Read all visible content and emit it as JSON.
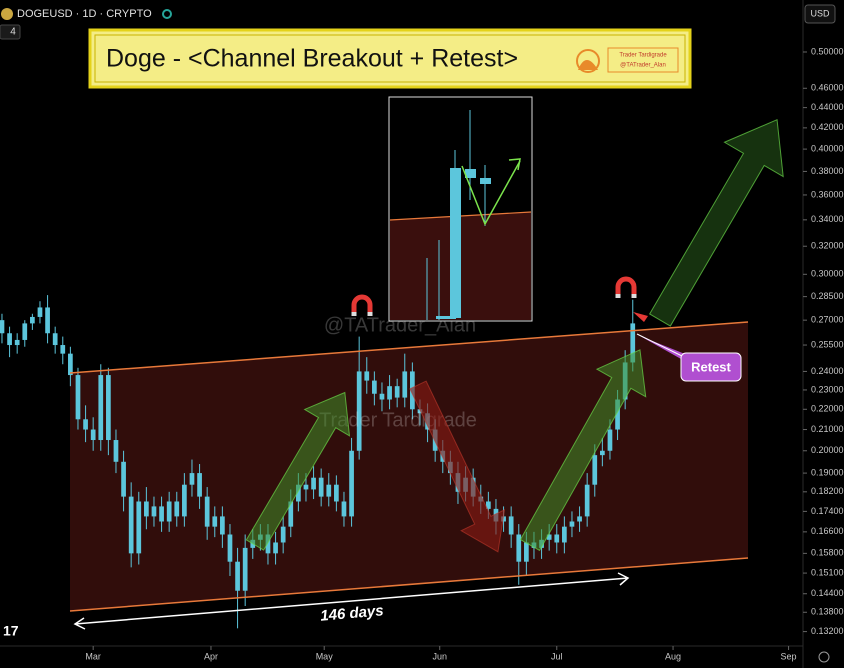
{
  "header": {
    "symbol": "DOGEUSD · 1D · CRYPTO",
    "badge": "4",
    "currency": "USD"
  },
  "annotations": {
    "headline": "Doge - <Channel Breakout + Retest>",
    "logo_name": "Trader Tardigrade",
    "logo_handle": "@TATrader_Alan",
    "watermark_handle": "@TATrader_Alan",
    "watermark_name": "Trader Tardigrade",
    "duration": "146 days",
    "retest": "Retest"
  },
  "chart_data": {
    "type": "candlestick",
    "color": "#5cc6dc",
    "log_scale": true,
    "xlim": [
      -0.26,
      105.4
    ],
    "xticks": [
      {
        "value": 12,
        "label": "Mar"
      },
      {
        "value": 27.5,
        "label": "Apr"
      },
      {
        "value": 42.4,
        "label": "May"
      },
      {
        "value": 57.6,
        "label": "Jun"
      },
      {
        "value": 73,
        "label": "Jul"
      },
      {
        "value": 88.3,
        "label": "Aug"
      },
      {
        "value": 103.5,
        "label": "Sep"
      }
    ],
    "ylim": [
      0.128,
      0.557
    ],
    "yticks": [
      {
        "value": 0.5,
        "label": "0.50000"
      },
      {
        "value": 0.46,
        "label": "0.46000"
      },
      {
        "value": 0.44,
        "label": "0.44000"
      },
      {
        "value": 0.42,
        "label": "0.42000"
      },
      {
        "value": 0.4,
        "label": "0.40000"
      },
      {
        "value": 0.38,
        "label": "0.38000"
      },
      {
        "value": 0.36,
        "label": "0.36000"
      },
      {
        "value": 0.34,
        "label": "0.34000"
      },
      {
        "value": 0.32,
        "label": "0.32000"
      },
      {
        "value": 0.3,
        "label": "0.30000"
      },
      {
        "value": 0.285,
        "label": "0.28500"
      },
      {
        "value": 0.27,
        "label": "0.27000"
      },
      {
        "value": 0.255,
        "label": "0.25500"
      },
      {
        "value": 0.24,
        "label": "0.24000"
      },
      {
        "value": 0.23,
        "label": "0.23000"
      },
      {
        "value": 0.22,
        "label": "0.22000"
      },
      {
        "value": 0.21,
        "label": "0.21000"
      },
      {
        "value": 0.2,
        "label": "0.20000"
      },
      {
        "value": 0.19,
        "label": "0.19000"
      },
      {
        "value": 0.182,
        "label": "0.18200"
      },
      {
        "value": 0.174,
        "label": "0.17400"
      },
      {
        "value": 0.166,
        "label": "0.16600"
      },
      {
        "value": 0.158,
        "label": "0.15800"
      },
      {
        "value": 0.151,
        "label": "0.15100"
      },
      {
        "value": 0.144,
        "label": "0.14400"
      },
      {
        "value": 0.138,
        "label": "0.13800"
      },
      {
        "value": 0.132,
        "label": "0.13200"
      }
    ],
    "open": [
      0.27,
      0.262,
      0.255,
      0.258,
      0.268,
      0.272,
      0.278,
      0.262,
      0.255,
      0.25,
      0.238,
      0.215,
      0.21,
      0.205,
      0.238,
      0.205,
      0.195,
      0.18,
      0.158,
      0.178,
      0.172,
      0.176,
      0.17,
      0.178,
      0.172,
      0.185,
      0.19,
      0.18,
      0.168,
      0.172,
      0.165,
      0.155,
      0.145,
      0.16,
      0.163,
      0.165,
      0.158,
      0.162,
      0.168,
      0.178,
      0.185,
      0.183,
      0.188,
      0.18,
      0.185,
      0.178,
      0.172,
      0.2,
      0.24,
      0.235,
      0.228,
      0.225,
      0.232,
      0.226,
      0.24,
      0.22,
      0.218,
      0.21,
      0.2,
      0.195,
      0.19,
      0.182,
      0.188,
      0.18,
      0.178,
      0.175,
      0.17,
      0.172,
      0.165,
      0.155,
      0.162,
      0.16,
      0.163,
      0.165,
      0.162,
      0.168,
      0.17,
      0.172,
      0.185,
      0.198,
      0.2,
      0.21,
      0.225,
      0.245
    ],
    "high": [
      0.274,
      0.266,
      0.262,
      0.27,
      0.274,
      0.282,
      0.286,
      0.266,
      0.26,
      0.254,
      0.242,
      0.222,
      0.216,
      0.244,
      0.242,
      0.21,
      0.2,
      0.186,
      0.182,
      0.184,
      0.18,
      0.18,
      0.182,
      0.182,
      0.19,
      0.196,
      0.194,
      0.184,
      0.176,
      0.176,
      0.169,
      0.16,
      0.165,
      0.167,
      0.169,
      0.169,
      0.166,
      0.172,
      0.183,
      0.19,
      0.19,
      0.193,
      0.192,
      0.19,
      0.189,
      0.182,
      0.206,
      0.26,
      0.248,
      0.24,
      0.234,
      0.238,
      0.236,
      0.25,
      0.245,
      0.225,
      0.223,
      0.215,
      0.205,
      0.2,
      0.195,
      0.193,
      0.192,
      0.185,
      0.182,
      0.179,
      0.176,
      0.176,
      0.169,
      0.166,
      0.166,
      0.167,
      0.169,
      0.169,
      0.172,
      0.174,
      0.176,
      0.19,
      0.203,
      0.206,
      0.215,
      0.23,
      0.252,
      0.283
    ],
    "low": [
      0.256,
      0.248,
      0.25,
      0.254,
      0.264,
      0.268,
      0.256,
      0.25,
      0.244,
      0.232,
      0.21,
      0.204,
      0.2,
      0.2,
      0.198,
      0.19,
      0.174,
      0.153,
      0.154,
      0.167,
      0.168,
      0.166,
      0.166,
      0.168,
      0.168,
      0.18,
      0.175,
      0.163,
      0.164,
      0.16,
      0.15,
      0.133,
      0.14,
      0.156,
      0.159,
      0.154,
      0.154,
      0.158,
      0.164,
      0.174,
      0.178,
      0.179,
      0.176,
      0.176,
      0.174,
      0.168,
      0.168,
      0.196,
      0.228,
      0.222,
      0.219,
      0.22,
      0.221,
      0.221,
      0.215,
      0.212,
      0.204,
      0.195,
      0.19,
      0.185,
      0.177,
      0.178,
      0.176,
      0.173,
      0.171,
      0.165,
      0.166,
      0.16,
      0.147,
      0.15,
      0.156,
      0.156,
      0.159,
      0.158,
      0.158,
      0.164,
      0.166,
      0.168,
      0.18,
      0.193,
      0.196,
      0.205,
      0.22,
      0.24
    ],
    "close": [
      0.262,
      0.255,
      0.258,
      0.268,
      0.272,
      0.278,
      0.262,
      0.255,
      0.25,
      0.238,
      0.215,
      0.21,
      0.205,
      0.238,
      0.205,
      0.195,
      0.18,
      0.158,
      0.178,
      0.172,
      0.176,
      0.17,
      0.178,
      0.172,
      0.185,
      0.19,
      0.18,
      0.168,
      0.172,
      0.165,
      0.155,
      0.145,
      0.16,
      0.163,
      0.165,
      0.158,
      0.162,
      0.168,
      0.178,
      0.185,
      0.183,
      0.188,
      0.18,
      0.185,
      0.178,
      0.172,
      0.2,
      0.24,
      0.235,
      0.228,
      0.225,
      0.232,
      0.226,
      0.24,
      0.22,
      0.218,
      0.21,
      0.2,
      0.195,
      0.19,
      0.182,
      0.188,
      0.18,
      0.178,
      0.175,
      0.17,
      0.172,
      0.165,
      0.155,
      0.162,
      0.16,
      0.163,
      0.165,
      0.162,
      0.168,
      0.17,
      0.172,
      0.185,
      0.198,
      0.2,
      0.21,
      0.225,
      0.245,
      0.268
    ]
  }
}
